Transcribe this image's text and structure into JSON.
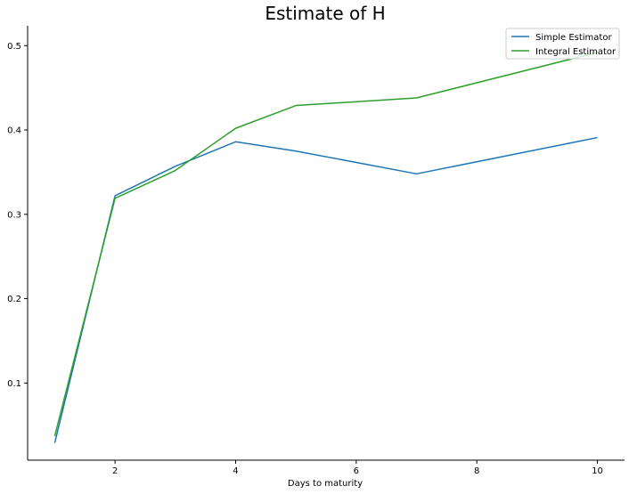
{
  "chart_data": {
    "type": "line",
    "title": "Estimate of H",
    "xlabel": "Days to maturity",
    "ylabel": "",
    "xlim": [
      0.55,
      10.45
    ],
    "ylim": [
      0.0085,
      0.5235
    ],
    "xticks": [
      2,
      4,
      6,
      8,
      10
    ],
    "yticks": [
      0.1,
      0.2,
      0.3,
      0.4,
      0.5
    ],
    "xtick_labels": [
      "2",
      "4",
      "6",
      "8",
      "10"
    ],
    "ytick_labels": [
      "0.1",
      "0.2",
      "0.3",
      "0.4",
      "0.5"
    ],
    "grid": false,
    "legend_position": "top-right",
    "series": [
      {
        "name": "Simple Estimator",
        "color": "#1f77b4",
        "x": [
          1,
          2,
          3,
          4,
          5,
          7,
          10
        ],
        "y": [
          0.029,
          0.322,
          0.357,
          0.386,
          0.375,
          0.348,
          0.391
        ]
      },
      {
        "name": "Integral Estimator",
        "color": "#2ca02c",
        "x": [
          1,
          2,
          3,
          4,
          5,
          7,
          10
        ],
        "y": [
          0.037,
          0.319,
          0.352,
          0.402,
          0.429,
          0.438,
          0.492
        ]
      }
    ]
  }
}
